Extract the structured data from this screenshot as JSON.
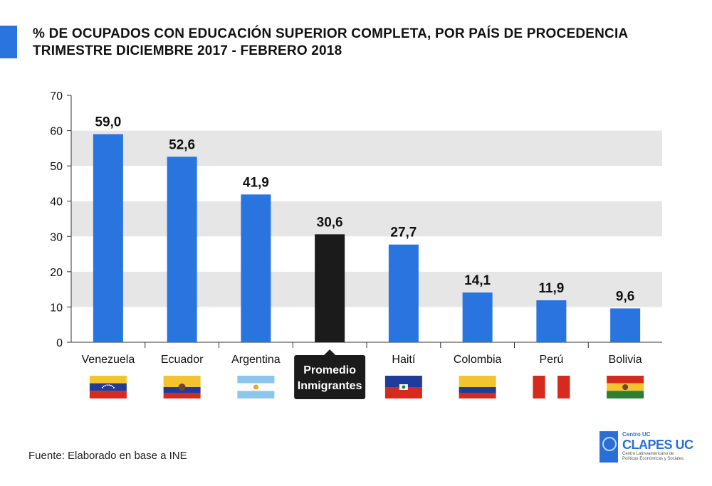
{
  "colors": {
    "accent": "#2a74df",
    "bar": "#2a74df",
    "highlight": "#1b1b1b",
    "band": "#e6e6e6",
    "axis": "#333333"
  },
  "title": {
    "line1": "% DE OCUPADOS CON EDUCACIÓN SUPERIOR COMPLETA, POR PAÍS DE PROCEDENCIA",
    "line2": "TRIMESTRE DICIEMBRE 2017 - FEBRERO 2018"
  },
  "source": "Fuente: Elaborado en base a INE",
  "logo": {
    "small": "Centro UC",
    "name": "CLAPES UC",
    "tagline_line1": "Centro Latinoamericano de",
    "tagline_line2": "Políticas Económicas y Sociales"
  },
  "chart_data": {
    "type": "bar",
    "title": "",
    "xlabel": "",
    "ylabel": "",
    "ylim": [
      0,
      70
    ],
    "yticks": [
      0,
      10,
      20,
      30,
      40,
      50,
      60,
      70
    ],
    "categories": [
      "Venezuela",
      "Ecuador",
      "Argentina",
      "Promedio Inmigrantes",
      "Haití",
      "Colombia",
      "Perú",
      "Bolivia"
    ],
    "values": [
      59.0,
      52.6,
      41.9,
      30.6,
      27.7,
      14.1,
      11.9,
      9.6
    ],
    "value_labels": [
      "59,0",
      "52,6",
      "41,9",
      "30,6",
      "27,7",
      "14,1",
      "11,9",
      "9,6"
    ],
    "highlighted_category": "Promedio Inmigrantes",
    "category_icons": [
      "venezuela-flag",
      "ecuador-flag",
      "argentina-flag",
      null,
      "haiti-flag",
      "colombia-flag",
      "peru-flag",
      "bolivia-flag"
    ],
    "alternating_grid_bands": true
  }
}
